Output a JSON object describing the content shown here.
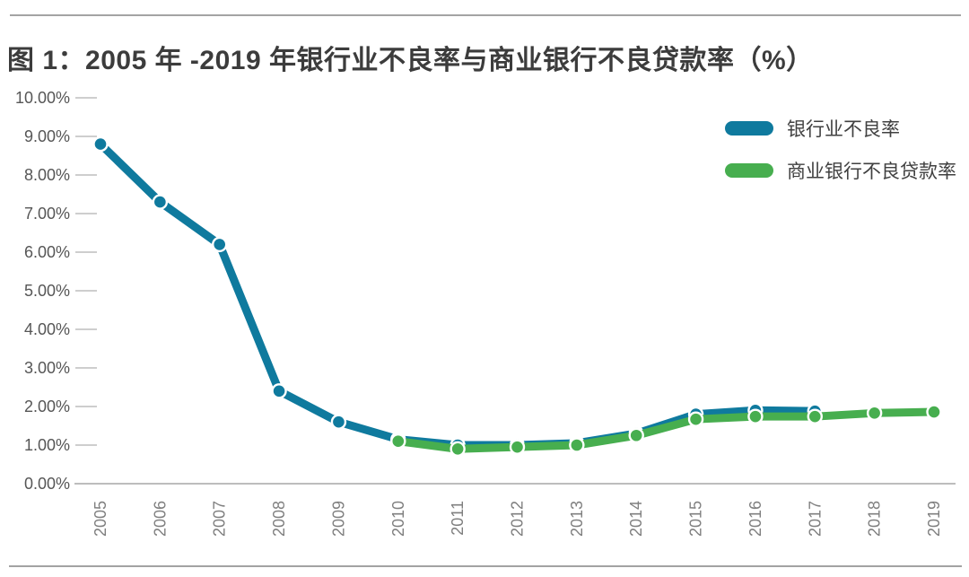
{
  "title": "图 1：2005 年 -2019 年银行业不良率与商业银行不良贷款率（%）",
  "colors": {
    "banking_line": "#0f7a9e",
    "commercial_line": "#47ae4f",
    "axis": "#bdbdbd",
    "y_label": "#565656",
    "x_label": "#7f7f7f",
    "divider": "#a3a3a3",
    "title_text": "#3c3c3c"
  },
  "chart_data": {
    "type": "line",
    "title": "图 1：2005 年 -2019 年银行业不良率与商业银行不良贷款率（%）",
    "x": [
      "2005",
      "2006",
      "2007",
      "2008",
      "2009",
      "2010",
      "2011",
      "2012",
      "2013",
      "2014",
      "2015",
      "2016",
      "2017",
      "2018",
      "2019"
    ],
    "series": [
      {
        "name": "银行业不良率",
        "color": "#0f7a9e",
        "x": [
          "2005",
          "2006",
          "2007",
          "2008",
          "2009",
          "2010",
          "2011",
          "2012",
          "2013",
          "2014",
          "2015",
          "2016",
          "2017"
        ],
        "values": [
          8.8,
          7.3,
          6.2,
          2.4,
          1.6,
          1.15,
          1.0,
          1.0,
          1.05,
          1.3,
          1.8,
          1.9,
          1.88
        ]
      },
      {
        "name": "商业银行不良贷款率",
        "color": "#47ae4f",
        "x": [
          "2010",
          "2011",
          "2012",
          "2013",
          "2014",
          "2015",
          "2016",
          "2017",
          "2018",
          "2019"
        ],
        "values": [
          1.1,
          0.9,
          0.95,
          1.0,
          1.25,
          1.67,
          1.74,
          1.74,
          1.83,
          1.86
        ]
      }
    ],
    "ylim": [
      0,
      10
    ],
    "y_tick_labels": [
      "0.00%",
      "1.00%",
      "2.00%",
      "3.00%",
      "4.00%",
      "5.00%",
      "6.00%",
      "7.00%",
      "8.00%",
      "9.00%",
      "10.00%"
    ],
    "legend_position": "top-right",
    "grid": false,
    "markers": "circle-white-ring"
  }
}
